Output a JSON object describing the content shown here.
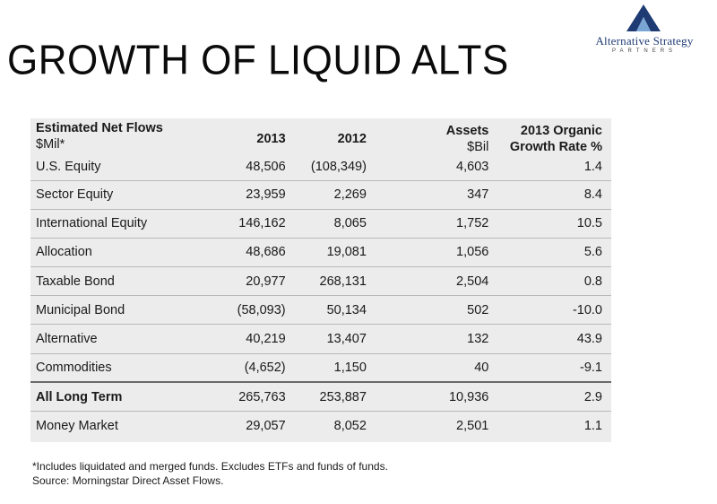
{
  "slide": {
    "title": "GROWTH OF LIQUID ALTS"
  },
  "logo": {
    "icon": "triangle-a-icon",
    "name": "Alternative Strategy",
    "tagline": "PARTNERS",
    "colors": {
      "dark": "#1f3b73",
      "light": "#7aa6d6"
    }
  },
  "table": {
    "headers": {
      "label_line1": "Estimated Net Flows",
      "label_line2": "$Mil*",
      "col_2013": "2013",
      "col_2012": "2012",
      "assets_line1": "Assets",
      "assets_line2": "$Bil",
      "growth_line1": "2013 Organic",
      "growth_line2": "Growth Rate %"
    },
    "rows": [
      {
        "label": "U.S. Equity",
        "v2013": "48,506",
        "v2012": "(108,349)",
        "assets": "4,603",
        "growth": "1.4"
      },
      {
        "label": "Sector Equity",
        "v2013": "23,959",
        "v2012": "2,269",
        "assets": "347",
        "growth": "8.4"
      },
      {
        "label": "International Equity",
        "v2013": "146,162",
        "v2012": "8,065",
        "assets": "1,752",
        "growth": "10.5"
      },
      {
        "label": "Allocation",
        "v2013": "48,686",
        "v2012": "19,081",
        "assets": "1,056",
        "growth": "5.6"
      },
      {
        "label": "Taxable Bond",
        "v2013": "20,977",
        "v2012": "268,131",
        "assets": "2,504",
        "growth": "0.8"
      },
      {
        "label": "Municipal Bond",
        "v2013": "(58,093)",
        "v2012": "50,134",
        "assets": "502",
        "growth": "-10.0"
      },
      {
        "label": "Alternative",
        "v2013": "40,219",
        "v2012": "13,407",
        "assets": "132",
        "growth": "43.9"
      },
      {
        "label": "Commodities",
        "v2013": "(4,652)",
        "v2012": "1,150",
        "assets": "40",
        "growth": "-9.1"
      },
      {
        "label": "All Long Term",
        "v2013": "265,763",
        "v2012": "253,887",
        "assets": "10,936",
        "growth": "2.9"
      },
      {
        "label": "Money Market",
        "v2013": "29,057",
        "v2012": "8,052",
        "assets": "2,501",
        "growth": "1.1"
      }
    ]
  },
  "footnote": {
    "line1": "*Includes liquidated and merged funds. Excludes ETFs and funds of funds.",
    "line2": "Source: Morningstar Direct Asset Flows."
  }
}
